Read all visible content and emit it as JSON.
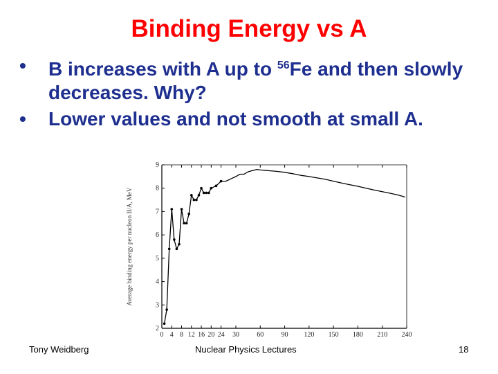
{
  "slide": {
    "title": "Binding Energy vs A",
    "bullets": [
      {
        "prefix": "B increases with A up to ",
        "sup": "56",
        "suffix": "Fe and then slowly decreases. Why?"
      },
      {
        "prefix": "Lower values and not smooth at small A.",
        "sup": "",
        "suffix": ""
      }
    ],
    "bullet_symbol": "•",
    "footer_left": "Tony Weidberg",
    "footer_center": "Nuclear Physics Lectures",
    "page_number": "18"
  },
  "colors": {
    "title": "#ff0000",
    "bullets": "#1e2f8f",
    "curve": "#000000"
  },
  "chart_data": {
    "type": "line",
    "title": "",
    "xlabel": "",
    "ylabel": "Average binding energy per nucleon B/A, MeV",
    "xlim": [
      0,
      240
    ],
    "ylim": [
      2,
      9
    ],
    "x_ticks": [
      {
        "v": 0,
        "label": "0"
      },
      {
        "v": 4,
        "label": "4"
      },
      {
        "v": 8,
        "label": "8"
      },
      {
        "v": 12,
        "label": "12"
      },
      {
        "v": 16,
        "label": "16"
      },
      {
        "v": 20,
        "label": "20"
      },
      {
        "v": 24,
        "label": "24"
      },
      {
        "v": 30,
        "label": "30"
      },
      {
        "v": 60,
        "label": "60"
      },
      {
        "v": 90,
        "label": "90"
      },
      {
        "v": 120,
        "label": "120"
      },
      {
        "v": 150,
        "label": "150"
      },
      {
        "v": 180,
        "label": "180"
      },
      {
        "v": 210,
        "label": "210"
      },
      {
        "v": 240,
        "label": "240"
      }
    ],
    "y_ticks": [
      2,
      3,
      4,
      5,
      6,
      7,
      8,
      9
    ],
    "series": [
      {
        "x": [
          1,
          2,
          3,
          4,
          5,
          6,
          7,
          8,
          9,
          10,
          11,
          12,
          13,
          14,
          15,
          16,
          17,
          18,
          19,
          20,
          22,
          24,
          26,
          28,
          30,
          35,
          40,
          45,
          50,
          56,
          60,
          70,
          80,
          90,
          100,
          110,
          120,
          130,
          140,
          150,
          160,
          170,
          180,
          190,
          200,
          210,
          220,
          230,
          238
        ],
        "y": [
          2.2,
          2.8,
          5.4,
          7.1,
          5.8,
          5.4,
          5.6,
          7.1,
          6.5,
          6.5,
          6.9,
          7.7,
          7.5,
          7.5,
          7.7,
          8.0,
          7.8,
          7.8,
          7.8,
          8.0,
          8.1,
          8.3,
          8.3,
          8.4,
          8.5,
          8.6,
          8.6,
          8.7,
          8.75,
          8.8,
          8.78,
          8.75,
          8.72,
          8.68,
          8.62,
          8.55,
          8.5,
          8.44,
          8.38,
          8.3,
          8.22,
          8.15,
          8.08,
          8.0,
          7.92,
          7.85,
          7.78,
          7.7,
          7.62
        ]
      }
    ],
    "grid": false
  }
}
